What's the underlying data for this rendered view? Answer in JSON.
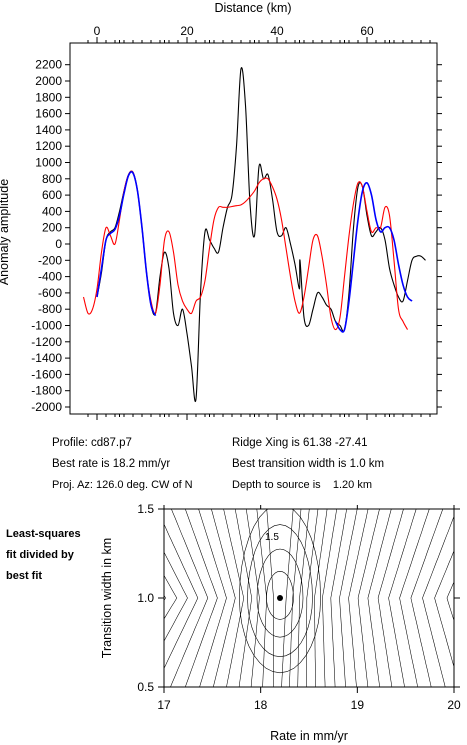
{
  "top_axis": {
    "label": "Distance (km)"
  },
  "left_axis": {
    "label": "Anomaly amplitude"
  },
  "info": {
    "profile": "Profile: cd87.p7",
    "ridge_xing": "Ridge Xing is 61.38 -27.41",
    "best_rate": "Best rate is 18.2 mm/yr",
    "best_width": "Best transition width is 1.0 km",
    "proj_az": "Proj. Az: 126.0 deg. CW of N",
    "depth": "Depth to source is    1.20 km"
  },
  "bottom_note": [
    "Least-squares",
    "fit divided by",
    "best fit"
  ],
  "colors": {
    "observed": "#000000",
    "model": "#ff0000",
    "fit_segment": "#0000ff"
  },
  "chart_data": [
    {
      "type": "line",
      "xlabel": "Distance (km)",
      "ylabel": "Anomaly amplitude",
      "xlim": [
        -4,
        74
      ],
      "ylim": [
        -2100,
        2300
      ],
      "x_ticks": [
        0,
        20,
        40,
        60
      ],
      "y_ticks": [
        -2000,
        -1800,
        -1600,
        -1400,
        -1200,
        -1000,
        -800,
        -600,
        -400,
        -200,
        0,
        200,
        400,
        600,
        800,
        1000,
        1200,
        1400,
        1600,
        1800,
        2000,
        2200
      ],
      "grid": false,
      "series": [
        {
          "color": "#000000",
          "x": [
            0,
            1,
            2,
            3,
            4,
            5,
            6,
            7,
            8,
            9,
            10,
            11,
            12,
            13,
            14,
            15,
            16,
            17,
            18,
            19,
            20,
            21,
            22,
            23,
            24,
            25,
            26,
            27,
            28,
            29,
            30,
            31,
            32,
            33,
            34,
            35,
            36,
            37,
            38,
            39,
            40,
            41,
            42,
            43,
            44,
            45,
            45.1,
            46,
            47,
            48,
            49,
            50,
            51,
            52,
            53,
            54,
            55,
            56,
            57,
            58,
            59,
            60,
            61,
            62,
            63,
            64,
            65,
            66,
            67,
            68,
            69,
            70,
            71,
            72,
            73
          ],
          "y": [
            -650,
            -350,
            50,
            150,
            200,
            400,
            650,
            850,
            880,
            650,
            200,
            -350,
            -750,
            -850,
            -400,
            -100,
            -300,
            -850,
            -1000,
            -800,
            -1100,
            -1500,
            -1900,
            -600,
            150,
            50,
            -50,
            -100,
            200,
            450,
            600,
            1200,
            2150,
            1700,
            500,
            100,
            950,
            800,
            850,
            550,
            150,
            100,
            200,
            0,
            -250,
            -550,
            -200,
            -900,
            -1000,
            -800,
            -600,
            -650,
            -750,
            -800,
            -950,
            -1000,
            -1050,
            -600,
            200,
            700,
            700,
            350,
            100,
            150,
            200,
            50,
            -300,
            -500,
            -650,
            -700,
            -450,
            -200,
            -150,
            -150,
            -200
          ]
        },
        {
          "color": "#ff0000",
          "x": [
            -3,
            -2,
            -1,
            0,
            1,
            2,
            3,
            4,
            5,
            6,
            7,
            8,
            9,
            10,
            11,
            12,
            13,
            14,
            15,
            16,
            17,
            18,
            19,
            20,
            21,
            22,
            23,
            24,
            25,
            26,
            27,
            28,
            29,
            30,
            31,
            32,
            33,
            34,
            35,
            36,
            37,
            38,
            39,
            40,
            41,
            42,
            43,
            44,
            45,
            46,
            47,
            48,
            49,
            50,
            51,
            52,
            53,
            54,
            55,
            56,
            57,
            58,
            59,
            60,
            61,
            62,
            63,
            64,
            65,
            66,
            67,
            68,
            69
          ],
          "y": [
            -650,
            -850,
            -800,
            -550,
            -100,
            200,
            100,
            0,
            300,
            650,
            850,
            880,
            650,
            200,
            -350,
            -700,
            -850,
            -500,
            50,
            150,
            -100,
            -500,
            -700,
            -800,
            -850,
            -700,
            -650,
            -450,
            -50,
            300,
            450,
            450,
            450,
            460,
            470,
            480,
            520,
            580,
            650,
            750,
            800,
            800,
            700,
            550,
            300,
            -50,
            -400,
            -700,
            -850,
            -650,
            -300,
            50,
            100,
            -150,
            -500,
            -900,
            -1050,
            -900,
            -400,
            100,
            500,
            750,
            700,
            400,
            150,
            200,
            200,
            450,
            350,
            -200,
            -800,
            -950,
            -1050
          ]
        },
        {
          "color": "#0000ff",
          "x": [
            0,
            1,
            2,
            3,
            4,
            5,
            6,
            7,
            8,
            9,
            10,
            11,
            12,
            13,
            53,
            54,
            55,
            56,
            57,
            58,
            59,
            60,
            61,
            62,
            63,
            64,
            65,
            66,
            67,
            68,
            69,
            70
          ],
          "y": [
            -650,
            -300,
            50,
            130,
            180,
            350,
            620,
            840,
            870,
            650,
            200,
            -350,
            -750,
            -880,
            -950,
            -1050,
            -1050,
            -700,
            -200,
            300,
            650,
            750,
            600,
            300,
            150,
            200,
            200,
            50,
            -250,
            -500,
            -650,
            -700
          ]
        }
      ]
    },
    {
      "type": "contour",
      "xlabel": "Rate in mm/yr",
      "ylabel": "Transition width in km",
      "xlim": [
        17,
        20
      ],
      "ylim": [
        0.5,
        1.5
      ],
      "x_ticks": [
        17,
        18,
        19,
        20
      ],
      "y_ticks": [
        0.5,
        1.0,
        1.5
      ],
      "contour_label": "1.5",
      "best_fit_point": {
        "x": 18.2,
        "y": 1.0
      }
    }
  ]
}
